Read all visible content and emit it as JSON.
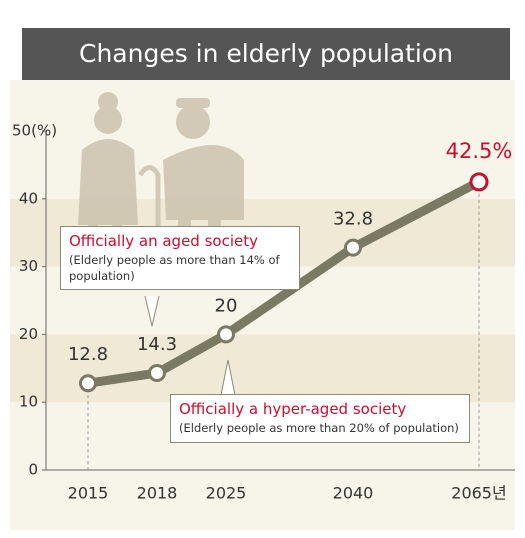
{
  "chart_data": {
    "type": "line",
    "title": "Changes in elderly population",
    "categories": [
      "2015",
      "2018",
      "2025",
      "2040",
      "2065년"
    ],
    "series": [
      {
        "name": "Elderly population",
        "color": "#7a7a62",
        "values": [
          12.8,
          14.3,
          20,
          32.8,
          42.5
        ],
        "value_labels": [
          "12.8",
          "14.3",
          "20",
          "32.8",
          "42.5%"
        ]
      }
    ],
    "highlight_color": "#c8102e",
    "ylim": [
      0,
      50
    ],
    "yticks": [
      0,
      10,
      20,
      30,
      40,
      {
        "value": 50,
        "label": "50(%)"
      }
    ],
    "annotations": [
      {
        "title": "Officially an aged society",
        "text": "(Elderly people as more than 14% of population)"
      },
      {
        "title": "Officially a hyper-aged society",
        "text": "(Elderly people as more than 20% of population)"
      }
    ]
  }
}
